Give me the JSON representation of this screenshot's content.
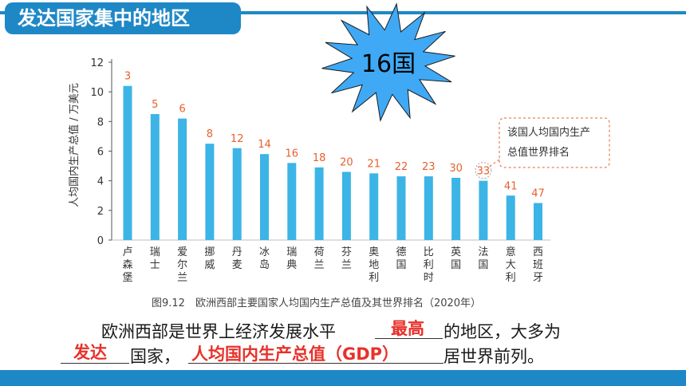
{
  "header": {
    "title": "发达国家集中的地区"
  },
  "starburst": {
    "label": "16国",
    "fill": "#3FA9F5"
  },
  "chart_data": {
    "type": "bar",
    "ylabel": "人均国内生产总值 / 万美元",
    "ylim": [
      0,
      12
    ],
    "yticks": [
      0,
      2,
      4,
      6,
      8,
      10,
      12
    ],
    "categories": [
      "卢森堡",
      "瑞士",
      "爱尔兰",
      "挪威",
      "丹麦",
      "冰岛",
      "瑞典",
      "荷兰",
      "芬兰",
      "奥地利",
      "德国",
      "比利时",
      "英国",
      "法国",
      "意大利",
      "西班牙"
    ],
    "values": [
      10.4,
      8.5,
      8.2,
      6.5,
      6.2,
      5.8,
      5.2,
      4.9,
      4.6,
      4.5,
      4.3,
      4.3,
      4.2,
      4.0,
      3.0,
      2.5
    ],
    "ranks": [
      "3",
      "5",
      "6",
      "8",
      "12",
      "14",
      "16",
      "18",
      "20",
      "21",
      "22",
      "23",
      "30",
      "33",
      "41",
      "47"
    ],
    "caption": "图9.12　欧洲西部主要国家人均国内生产总值及其世界排名（2020年）",
    "callout": {
      "line1": "该国人均国内生产",
      "line2": "总值世界排名"
    },
    "bar_color": "#3CB4E6",
    "rank_color": "#E8602C"
  },
  "text": {
    "line1_pre": "欧洲西部是世界上经济发展水平",
    "line1_post": "的地区，大多为",
    "line2_mid": "国家，",
    "line2_post": "居世界前列。"
  },
  "answers": {
    "a1": "最高",
    "a2": "发达",
    "a3": "人均国内生产总值（GDP）"
  }
}
